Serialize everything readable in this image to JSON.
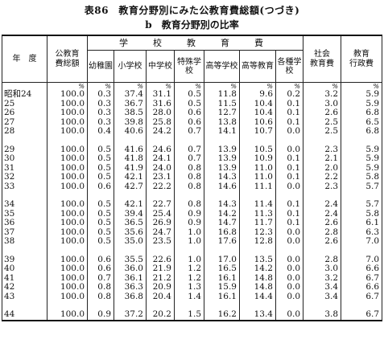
{
  "title": "表86　教育分野別にみた公教育費総額(つづき)",
  "subtitle": "b　教育分野別の比率",
  "headers": {
    "year": "年　度",
    "total": "公教育\n費総額",
    "school_group": "学　校　教　育　費",
    "social": "社会\n教育費",
    "admin": "教育\n行政費",
    "cols": [
      "幼\n園",
      "稚\n園",
      "小\n学校",
      "中\n学校",
      "特殊\n学校",
      "高等\n学校",
      "高等\n教育",
      "各種\n学校"
    ],
    "cols_full": [
      "幼稚園",
      "小学校",
      "中学校",
      "特殊学校",
      "高等学校",
      "高等教育",
      "各種学校"
    ]
  },
  "unit": "%",
  "rows": [
    {
      "year": "昭和24",
      "values": [
        "100.0",
        "0.3",
        "37.4",
        "31.1",
        "0.5",
        "11.8",
        "9.6",
        "0.2",
        "3.2",
        "5.9"
      ]
    },
    {
      "year": "25",
      "values": [
        "100.0",
        "0.3",
        "36.7",
        "31.6",
        "0.5",
        "11.5",
        "10.4",
        "0.1",
        "3.0",
        "5.9"
      ]
    },
    {
      "year": "26",
      "values": [
        "100.0",
        "0.3",
        "38.5",
        "28.0",
        "0.6",
        "12.7",
        "10.4",
        "0.1",
        "2.6",
        "6.8"
      ]
    },
    {
      "year": "27",
      "values": [
        "100.0",
        "0.3",
        "39.8",
        "25.8",
        "0.6",
        "13.8",
        "10.6",
        "0.1",
        "2.5",
        "6.5"
      ]
    },
    {
      "year": "28",
      "values": [
        "100.0",
        "0.4",
        "40.6",
        "24.2",
        "0.7",
        "14.1",
        "10.7",
        "0.0",
        "2.5",
        "6.8"
      ]
    },
    {
      "year": "29",
      "values": [
        "100.0",
        "0.5",
        "41.6",
        "24.6",
        "0.7",
        "13.9",
        "10.5",
        "0.0",
        "2.3",
        "5.9"
      ]
    },
    {
      "year": "30",
      "values": [
        "100.0",
        "0.5",
        "41.8",
        "24.1",
        "0.7",
        "13.9",
        "10.9",
        "0.1",
        "2.1",
        "5.9"
      ]
    },
    {
      "year": "31",
      "values": [
        "100.0",
        "0.5",
        "41.9",
        "24.0",
        "0.8",
        "13.9",
        "11.0",
        "0.1",
        "2.0",
        "5.9"
      ]
    },
    {
      "year": "32",
      "values": [
        "100.0",
        "0.5",
        "42.1",
        "23.1",
        "0.8",
        "14.3",
        "11.0",
        "0.1",
        "2.2",
        "5.8"
      ]
    },
    {
      "year": "33",
      "values": [
        "100.0",
        "0.6",
        "42.7",
        "22.2",
        "0.8",
        "14.6",
        "11.1",
        "0.0",
        "2.3",
        "5.7"
      ]
    },
    {
      "year": "34",
      "values": [
        "100.0",
        "0.5",
        "42.1",
        "22.7",
        "0.8",
        "14.3",
        "11.4",
        "0.1",
        "2.4",
        "5.7"
      ]
    },
    {
      "year": "35",
      "values": [
        "100.0",
        "0.5",
        "39.4",
        "25.4",
        "0.9",
        "14.2",
        "11.3",
        "0.1",
        "2.4",
        "5.8"
      ]
    },
    {
      "year": "36",
      "values": [
        "100.0",
        "0.5",
        "36.5",
        "26.9",
        "0.9",
        "14.7",
        "11.7",
        "0.1",
        "2.6",
        "6.1"
      ]
    },
    {
      "year": "37",
      "values": [
        "100.0",
        "0.5",
        "35.6",
        "24.7",
        "1.0",
        "16.8",
        "12.3",
        "0.0",
        "2.8",
        "6.3"
      ]
    },
    {
      "year": "38",
      "values": [
        "100.0",
        "0.5",
        "35.0",
        "23.5",
        "1.0",
        "17.6",
        "12.8",
        "0.0",
        "2.6",
        "7.0"
      ]
    },
    {
      "year": "39",
      "values": [
        "100.0",
        "0.6",
        "35.5",
        "22.6",
        "1.0",
        "17.0",
        "13.5",
        "0.0",
        "2.8",
        "7.0"
      ]
    },
    {
      "year": "40",
      "values": [
        "100.0",
        "0.6",
        "36.0",
        "21.9",
        "1.2",
        "16.5",
        "14.2",
        "0.0",
        "3.0",
        "6.6"
      ]
    },
    {
      "year": "41",
      "values": [
        "100.0",
        "0.7",
        "36.1",
        "21.2",
        "1.2",
        "16.1",
        "14.8",
        "0.0",
        "3.2",
        "6.7"
      ]
    },
    {
      "year": "42",
      "values": [
        "100.0",
        "0.8",
        "36.3",
        "20.9",
        "1.3",
        "15.9",
        "14.8",
        "0.0",
        "3.4",
        "6.6"
      ]
    },
    {
      "year": "43",
      "values": [
        "100.0",
        "0.8",
        "36.8",
        "20.4",
        "1.4",
        "16.1",
        "14.4",
        "0.0",
        "3.4",
        "6.7"
      ]
    },
    {
      "year": "44",
      "values": [
        "100.0",
        "0.9",
        "37.2",
        "20.2",
        "1.5",
        "16.2",
        "13.4",
        "0.0",
        "3.8",
        "6.7"
      ]
    }
  ]
}
